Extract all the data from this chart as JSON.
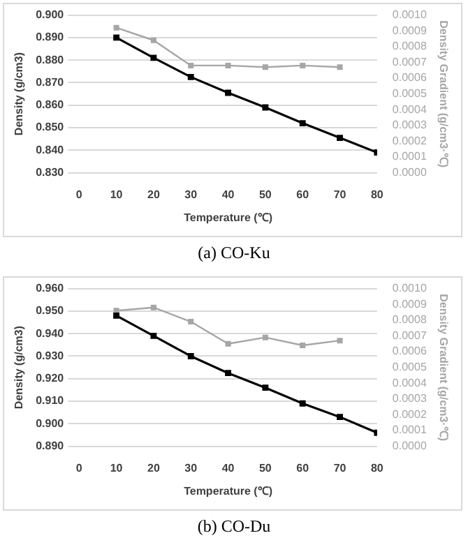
{
  "chart_data": [
    {
      "type": "line",
      "xlabel": "Temperature (℃)",
      "ylabel": "Density (g/cm3)",
      "y2label": "Density Gradient (g/cm3·℃)",
      "annotations": [
        "(a)  CO-Ku"
      ],
      "xlim": [
        0,
        80
      ],
      "xticks": [
        0,
        10,
        20,
        30,
        40,
        50,
        60,
        70,
        80
      ],
      "ylim": [
        0.83,
        0.9
      ],
      "yticks": [
        {
          "value": 0.83,
          "label": "0.830"
        },
        {
          "value": 0.84,
          "label": "0.840"
        },
        {
          "value": 0.85,
          "label": "0.850"
        },
        {
          "value": 0.86,
          "label": "0.860"
        },
        {
          "value": 0.87,
          "label": "0.870"
        },
        {
          "value": 0.88,
          "label": "0.880"
        },
        {
          "value": 0.89,
          "label": "0.890"
        },
        {
          "value": 0.9,
          "label": "0.900"
        }
      ],
      "y2lim": [
        0,
        0.001
      ],
      "y2ticks": [
        {
          "value": 0,
          "label": "0.0000"
        },
        {
          "value": 0.0001,
          "label": "0.0001"
        },
        {
          "value": 0.0002,
          "label": "0.0002"
        },
        {
          "value": 0.0003,
          "label": "0.0003"
        },
        {
          "value": 0.0004,
          "label": "0.0004"
        },
        {
          "value": 0.0005,
          "label": "0.0005"
        },
        {
          "value": 0.0006,
          "label": "0.0006"
        },
        {
          "value": 0.0007,
          "label": "0.0007"
        },
        {
          "value": 0.0008,
          "label": "0.0008"
        },
        {
          "value": 0.0009,
          "label": "0.0009"
        },
        {
          "value": 0.001,
          "label": "0.0010"
        }
      ],
      "grid": "y",
      "legend": false,
      "marker": "square",
      "line_style": "solid",
      "series": [
        {
          "color": "#000000",
          "x": [
            10,
            20,
            30,
            40,
            50,
            60,
            70,
            80
          ],
          "values": [
            0.89,
            0.881,
            0.8725,
            0.8655,
            0.859,
            0.852,
            0.8455,
            0.839
          ]
        },
        {
          "color": "#a6a6a6",
          "axis": "y2",
          "x": [
            10,
            20,
            30,
            40,
            50,
            60,
            70
          ],
          "values": [
            0.00092,
            0.00084,
            0.00068,
            0.00068,
            0.00067,
            0.00068,
            0.00067
          ]
        }
      ]
    },
    {
      "type": "line",
      "xlabel": "Temperature (℃)",
      "ylabel": "Density (g/cm3)",
      "y2label": "Density Gradient (g/cm3·℃)",
      "annotations": [
        "(b)  CO-Du"
      ],
      "xlim": [
        0,
        80
      ],
      "xticks": [
        0,
        10,
        20,
        30,
        40,
        50,
        60,
        70,
        80
      ],
      "ylim": [
        0.89,
        0.96
      ],
      "yticks": [
        {
          "value": 0.89,
          "label": "0.890"
        },
        {
          "value": 0.9,
          "label": "0.900"
        },
        {
          "value": 0.91,
          "label": "0.910"
        },
        {
          "value": 0.92,
          "label": "0.920"
        },
        {
          "value": 0.93,
          "label": "0.930"
        },
        {
          "value": 0.94,
          "label": "0.940"
        },
        {
          "value": 0.95,
          "label": "0.950"
        },
        {
          "value": 0.96,
          "label": "0.960"
        }
      ],
      "y2lim": [
        0,
        0.001
      ],
      "y2ticks": [
        {
          "value": 0,
          "label": "0.0000"
        },
        {
          "value": 0.0001,
          "label": "0.0001"
        },
        {
          "value": 0.0002,
          "label": "0.0002"
        },
        {
          "value": 0.0003,
          "label": "0.0003"
        },
        {
          "value": 0.0004,
          "label": "0.0004"
        },
        {
          "value": 0.0005,
          "label": "0.0005"
        },
        {
          "value": 0.0006,
          "label": "0.0006"
        },
        {
          "value": 0.0007,
          "label": "0.0007"
        },
        {
          "value": 0.0008,
          "label": "0.0008"
        },
        {
          "value": 0.0009,
          "label": "0.0009"
        },
        {
          "value": 0.001,
          "label": "0.0010"
        }
      ],
      "grid": "y",
      "legend": false,
      "marker": "square",
      "line_style": "solid",
      "series": [
        {
          "color": "#000000",
          "x": [
            10,
            20,
            30,
            40,
            50,
            60,
            70,
            80
          ],
          "values": [
            0.948,
            0.939,
            0.93,
            0.9225,
            0.916,
            0.909,
            0.903,
            0.896
          ]
        },
        {
          "color": "#a6a6a6",
          "axis": "y2",
          "x": [
            10,
            20,
            30,
            40,
            50,
            60,
            70
          ],
          "values": [
            0.00086,
            0.00088,
            0.00079,
            0.00065,
            0.00069,
            0.00064,
            0.00067
          ]
        }
      ]
    }
  ]
}
